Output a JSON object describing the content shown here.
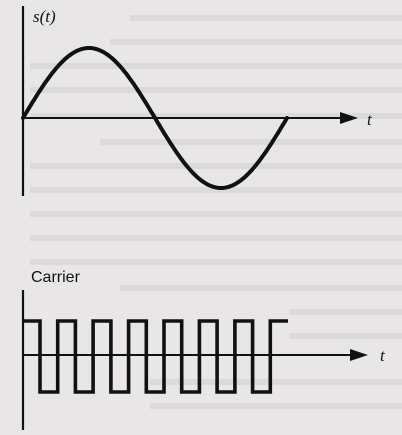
{
  "figure": {
    "top_panel": {
      "y_label": "s(t)",
      "x_label": "t",
      "waveform": "sine",
      "cycles": 1
    },
    "bottom_panel": {
      "title": "Carrier",
      "x_label": "t",
      "waveform": "square",
      "pulses": 7
    },
    "colors": {
      "ink": "#111111",
      "paper": "#e9e6e8",
      "bleed_through": "#c9c5c9"
    }
  }
}
